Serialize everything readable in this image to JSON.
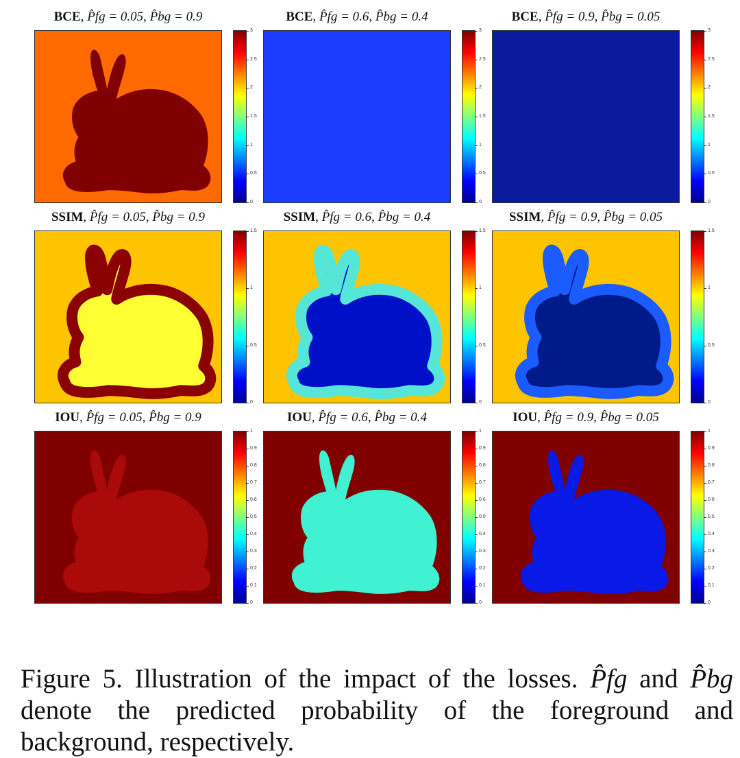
{
  "panels": [
    {
      "loss": "BCE",
      "p_fg_label": "P̂fg = 0.05",
      "p_bg_label": "P̂bg = 0.9",
      "colorbar_ticks": [
        "3",
        "2.5",
        "2",
        "1.5",
        "1",
        "0.5",
        "0"
      ],
      "colorbar_max": 3,
      "background_color": "#ff6a00",
      "rabbit_fill": "#800000",
      "rabbit_stroke": "#800000",
      "rabbit_opacity": 1
    },
    {
      "loss": "BCE",
      "p_fg_label": "P̂fg = 0.6",
      "p_bg_label": "P̂bg = 0.4",
      "colorbar_ticks": [
        "3",
        "2.5",
        "2",
        "1.5",
        "1",
        "0.5",
        "0"
      ],
      "colorbar_max": 3,
      "background_color": "#1a3dff",
      "rabbit_fill": "#1a3dff",
      "rabbit_stroke": "#1a3dff",
      "rabbit_opacity": 1
    },
    {
      "loss": "BCE",
      "p_fg_label": "P̂fg = 0.9",
      "p_bg_label": "P̂bg = 0.05",
      "colorbar_ticks": [
        "3",
        "2.5",
        "2",
        "1.5",
        "1",
        "0.5",
        "0"
      ],
      "colorbar_max": 3,
      "background_color": "#0b1a9e",
      "rabbit_fill": "#0b1a9e",
      "rabbit_stroke": "#0b1a9e",
      "rabbit_opacity": 1
    },
    {
      "loss": "SSIM",
      "p_fg_label": "P̂fg = 0.05",
      "p_bg_label": "P̂bg = 0.9",
      "colorbar_ticks": [
        "1.5",
        "1",
        "0.5",
        "0"
      ],
      "colorbar_max": 1.5,
      "background_color": "#ffc400",
      "rabbit_fill": "#ffff33",
      "rabbit_stroke": "#8b0000",
      "rabbit_opacity": 1
    },
    {
      "loss": "SSIM",
      "p_fg_label": "P̂fg = 0.6",
      "p_bg_label": "P̂bg = 0.4",
      "colorbar_ticks": [
        "1.5",
        "1",
        "0.5",
        "0"
      ],
      "colorbar_max": 1.5,
      "background_color": "#ffc400",
      "rabbit_fill": "#0010c8",
      "rabbit_stroke": "#55e6d8",
      "rabbit_opacity": 1
    },
    {
      "loss": "SSIM",
      "p_fg_label": "P̂fg = 0.9",
      "p_bg_label": "P̂bg = 0.05",
      "colorbar_ticks": [
        "1.5",
        "1",
        "0.5",
        "0"
      ],
      "colorbar_max": 1.5,
      "background_color": "#ffc400",
      "rabbit_fill": "#001a8a",
      "rabbit_stroke": "#1a5cff",
      "rabbit_opacity": 1
    },
    {
      "loss": "IOU",
      "p_fg_label": "P̂fg = 0.05",
      "p_bg_label": "P̂bg = 0.9",
      "colorbar_ticks": [
        "1",
        "0.9",
        "0.8",
        "0.7",
        "0.6",
        "0.5",
        "0.4",
        "0.3",
        "0.2",
        "0.1",
        "0"
      ],
      "colorbar_max": 1,
      "background_color": "#800000",
      "rabbit_fill": "#b30c0c",
      "rabbit_stroke": "#b30c0c",
      "rabbit_opacity": 0.85
    },
    {
      "loss": "IOU",
      "p_fg_label": "P̂fg = 0.6",
      "p_bg_label": "P̂bg = 0.4",
      "colorbar_ticks": [
        "1",
        "0.9",
        "0.8",
        "0.7",
        "0.6",
        "0.5",
        "0.4",
        "0.3",
        "0.2",
        "0.1",
        "0"
      ],
      "colorbar_max": 1,
      "background_color": "#800000",
      "rabbit_fill": "#40f2d2",
      "rabbit_stroke": "#40f2d2",
      "rabbit_opacity": 1
    },
    {
      "loss": "IOU",
      "p_fg_label": "P̂fg = 0.9",
      "p_bg_label": "P̂bg = 0.05",
      "colorbar_ticks": [
        "1",
        "0.9",
        "0.8",
        "0.7",
        "0.6",
        "0.5",
        "0.4",
        "0.3",
        "0.2",
        "0.1",
        "0"
      ],
      "colorbar_max": 1,
      "background_color": "#800000",
      "rabbit_fill": "#0a1ae6",
      "rabbit_stroke": "#0a1ae6",
      "rabbit_opacity": 1
    }
  ],
  "caption": {
    "label": "Figure 5.",
    "text_before": "Illustration of the impact of the losses.",
    "sym_fg": "P̂fg",
    "and_1": "and",
    "sym_bg": "P̂bg",
    "text_after": "denote the predicted probability of the foreground and background, respectively."
  }
}
